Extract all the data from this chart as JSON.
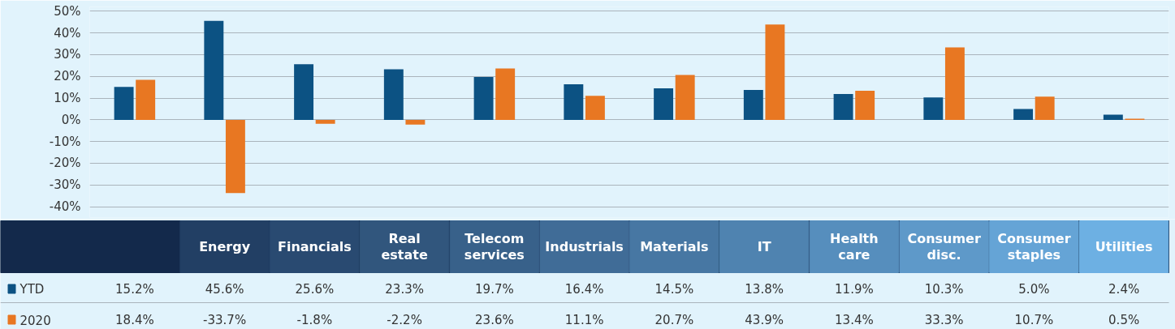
{
  "chart_data": {
    "type": "bar",
    "categories": [
      null,
      "Energy",
      "Financials",
      "Real estate",
      "Telecom services",
      "Industrials",
      "Materials",
      "IT",
      "Health care",
      "Consumer disc.",
      "Consumer staples",
      "Utilities"
    ],
    "series": [
      {
        "name": "YTD",
        "color": "#0c5283",
        "values": [
          15.2,
          45.6,
          25.6,
          23.3,
          19.7,
          16.4,
          14.5,
          13.8,
          11.9,
          10.3,
          5.0,
          2.4
        ],
        "value_labels": [
          "15.2%",
          "45.6%",
          "25.6%",
          "23.3%",
          "19.7%",
          "16.4%",
          "14.5%",
          "13.8%",
          "11.9%",
          "10.3%",
          "5.0%",
          "2.4%"
        ]
      },
      {
        "name": "2020",
        "color": "#e87722",
        "values": [
          18.4,
          -33.7,
          -1.8,
          -2.2,
          23.6,
          11.1,
          20.7,
          43.9,
          13.4,
          33.3,
          10.7,
          0.5
        ],
        "value_labels": [
          "18.4%",
          "-33.7%",
          "-1.8%",
          "-2.2%",
          "23.6%",
          "11.1%",
          "20.7%",
          "43.9%",
          "13.4%",
          "33.3%",
          "10.7%",
          "0.5%"
        ]
      }
    ],
    "ylim": [
      -45,
      52
    ],
    "yticks": [
      {
        "value": -40,
        "label": "-40%"
      },
      {
        "value": -30,
        "label": "-30%"
      },
      {
        "value": -20,
        "label": "-20%"
      },
      {
        "value": -10,
        "label": "-10%"
      },
      {
        "value": 0,
        "label": "0%"
      },
      {
        "value": 10,
        "label": "10%"
      },
      {
        "value": 20,
        "label": "20%"
      },
      {
        "value": 30,
        "label": "30%"
      },
      {
        "value": 40,
        "label": "40%"
      },
      {
        "value": 50,
        "label": "50%"
      }
    ],
    "grid": "y",
    "legend": "bottom left"
  }
}
